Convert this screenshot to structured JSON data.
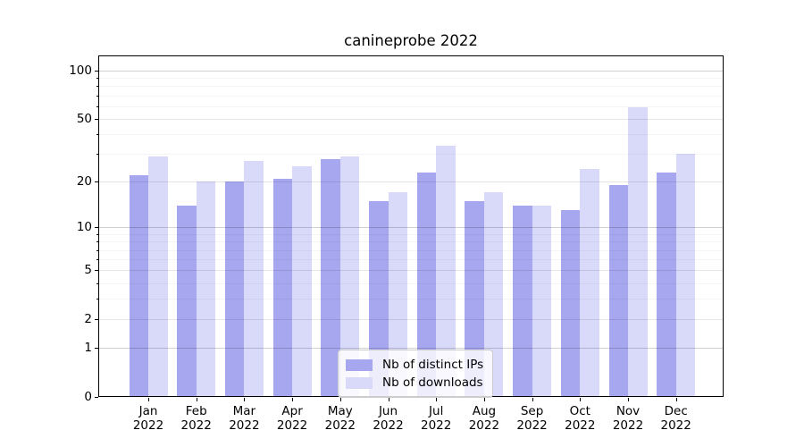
{
  "chart_data": {
    "type": "bar",
    "title": "canineprobe 2022",
    "categories": [
      "Jan 2022",
      "Feb 2022",
      "Mar 2022",
      "Apr 2022",
      "May 2022",
      "Jun 2022",
      "Jul 2022",
      "Aug 2022",
      "Sep 2022",
      "Oct 2022",
      "Nov 2022",
      "Dec 2022"
    ],
    "series": [
      {
        "name": "Nb of distinct IPs",
        "color": "#a7a7f0",
        "values": [
          22,
          14,
          20,
          21,
          28,
          15,
          23,
          15,
          14,
          13,
          19,
          23
        ]
      },
      {
        "name": "Nb of downloads",
        "color": "#d9d9f9",
        "values": [
          29,
          20,
          27,
          25,
          29,
          17,
          34,
          17,
          14,
          24,
          59,
          30
        ]
      }
    ],
    "xlabel": "",
    "ylabel": "",
    "yscale": "log1p",
    "yticks": [
      0,
      1,
      2,
      5,
      10,
      20,
      50,
      100
    ],
    "yticks_minor": [
      3,
      4,
      6,
      7,
      8,
      9,
      30,
      40,
      60,
      70,
      80,
      90
    ],
    "ylim": [
      0,
      124
    ],
    "grid": true,
    "legend_position": "lower center"
  }
}
